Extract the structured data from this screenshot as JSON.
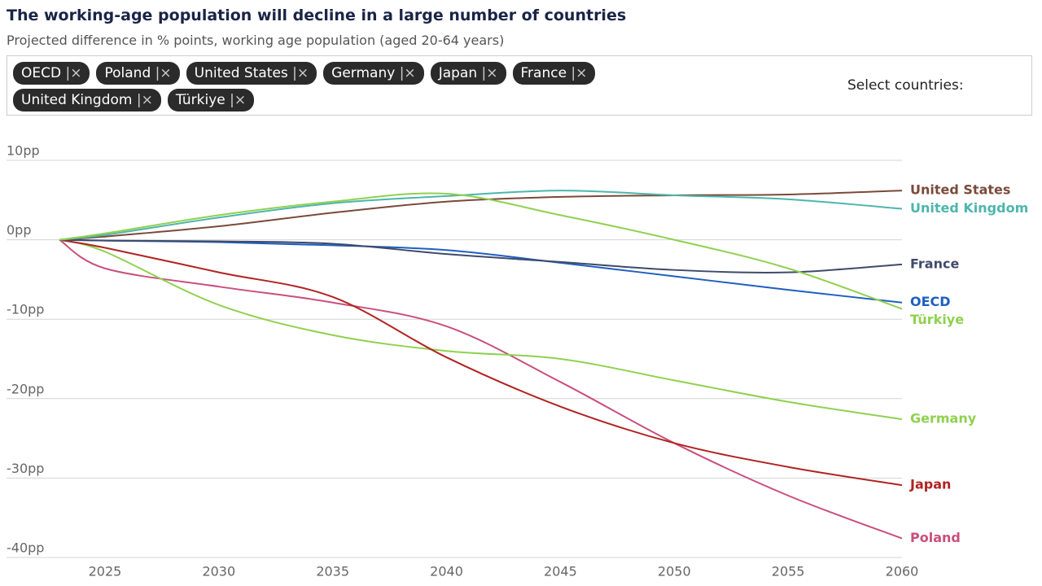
{
  "chart_data": {
    "type": "line",
    "title": "The working-age population will decline in a large number of countries",
    "subtitle": "Projected difference in % points, working age population (aged 20-64 years)",
    "filter_label": "Select countries:",
    "x": [
      2023,
      2025,
      2030,
      2035,
      2040,
      2045,
      2050,
      2055,
      2060
    ],
    "xlim": [
      2023,
      2060
    ],
    "xticks": [
      2025,
      2030,
      2035,
      2040,
      2045,
      2050,
      2055,
      2060
    ],
    "ylim": [
      -40,
      10
    ],
    "yticks": [
      {
        "value": 10,
        "label": "10pp"
      },
      {
        "value": 0,
        "label": "0pp"
      },
      {
        "value": -10,
        "label": "-10pp"
      },
      {
        "value": -20,
        "label": "-20pp"
      },
      {
        "value": -30,
        "label": "-30pp"
      },
      {
        "value": -40,
        "label": "-40pp"
      }
    ],
    "grid": true,
    "series": [
      {
        "name": "OECD",
        "color": "#1f5fbf",
        "values": [
          0,
          -0.1,
          -0.3,
          -0.7,
          -1.3,
          -2.9,
          -4.6,
          -6.3,
          -7.9
        ]
      },
      {
        "name": "Poland",
        "color": "#c94f7c",
        "values": [
          0,
          -3.6,
          -5.9,
          -7.9,
          -10.9,
          -17.9,
          -25.6,
          -32.2,
          -37.6
        ]
      },
      {
        "name": "United States",
        "color": "#7a4a3a",
        "values": [
          0,
          0.4,
          1.7,
          3.4,
          4.8,
          5.4,
          5.6,
          5.7,
          6.2
        ]
      },
      {
        "name": "Germany",
        "color": "#8fd14f",
        "values": [
          0,
          -1.5,
          -8.2,
          -12.0,
          -14.0,
          -15.0,
          -17.7,
          -20.4,
          -22.6
        ]
      },
      {
        "name": "Japan",
        "color": "#b22222",
        "values": [
          0,
          -1.0,
          -4.1,
          -7.2,
          -14.8,
          -21.0,
          -25.6,
          -28.6,
          -30.9
        ]
      },
      {
        "name": "France",
        "color": "#3f4a6b",
        "values": [
          0,
          -0.1,
          -0.2,
          -0.5,
          -1.8,
          -2.8,
          -3.8,
          -4.1,
          -3.1
        ]
      },
      {
        "name": "United Kingdom",
        "color": "#4db6ac",
        "values": [
          0,
          0.6,
          2.8,
          4.6,
          5.5,
          6.2,
          5.6,
          5.1,
          3.9
        ]
      },
      {
        "name": "Türkiye",
        "color": "#8fd14f",
        "values": [
          0,
          0.8,
          3.1,
          4.8,
          5.8,
          3.1,
          0,
          -3.6,
          -8.7
        ]
      }
    ]
  }
}
